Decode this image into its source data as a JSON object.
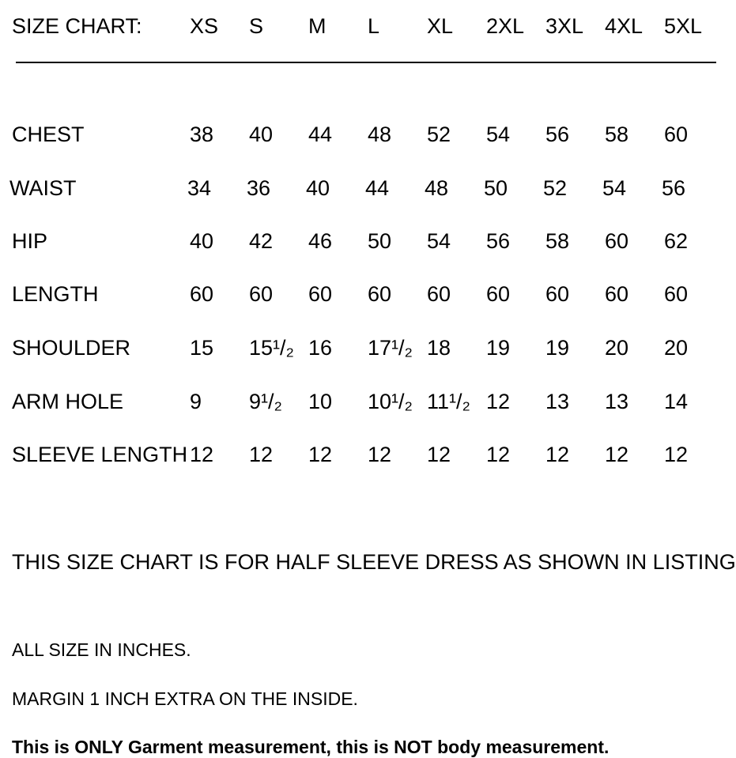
{
  "header": {
    "title": "SIZE CHART:",
    "sizes": [
      "XS",
      "S",
      "M",
      "L",
      "XL",
      "2XL",
      "3XL",
      "4XL",
      "5XL"
    ]
  },
  "rows": [
    {
      "label": "CHEST",
      "values": [
        "38",
        "40",
        "44",
        "48",
        "52",
        "54",
        "56",
        "58",
        "60"
      ]
    },
    {
      "label": "WAIST",
      "values": [
        "34",
        "36",
        "40",
        "44",
        "48",
        "50",
        "52",
        "54",
        "56"
      ]
    },
    {
      "label": "HIP",
      "values": [
        "40",
        "42",
        "46",
        "50",
        "54",
        "56",
        "58",
        "60",
        "62"
      ]
    },
    {
      "label": "LENGTH",
      "values": [
        "60",
        "60",
        "60",
        "60",
        "60",
        "60",
        "60",
        "60",
        "60"
      ]
    },
    {
      "label": "SHOULDER",
      "values": [
        "15",
        "15¹/₂",
        "16",
        "17¹/₂",
        "18",
        "19",
        "19",
        "20",
        "20"
      ]
    },
    {
      "label": "ARM HOLE",
      "values": [
        "9",
        "9¹/₂",
        "10",
        "10¹/₂",
        "11¹/₂",
        "12",
        "13",
        "13",
        "14"
      ]
    },
    {
      "label": "SLEEVE LENGTH",
      "values": [
        "12",
        "12",
        "12",
        "12",
        "12",
        "12",
        "12",
        "12",
        "12"
      ]
    }
  ],
  "notes": {
    "applies_to": "THIS SIZE CHART IS FOR HALF SLEEVE DRESS AS SHOWN IN LISTING",
    "units": "ALL SIZE IN INCHES.",
    "margin": "MARGIN 1 INCH EXTRA ON THE INSIDE.",
    "disclaimer": "This is ONLY Garment measurement, this is NOT body measurement."
  }
}
